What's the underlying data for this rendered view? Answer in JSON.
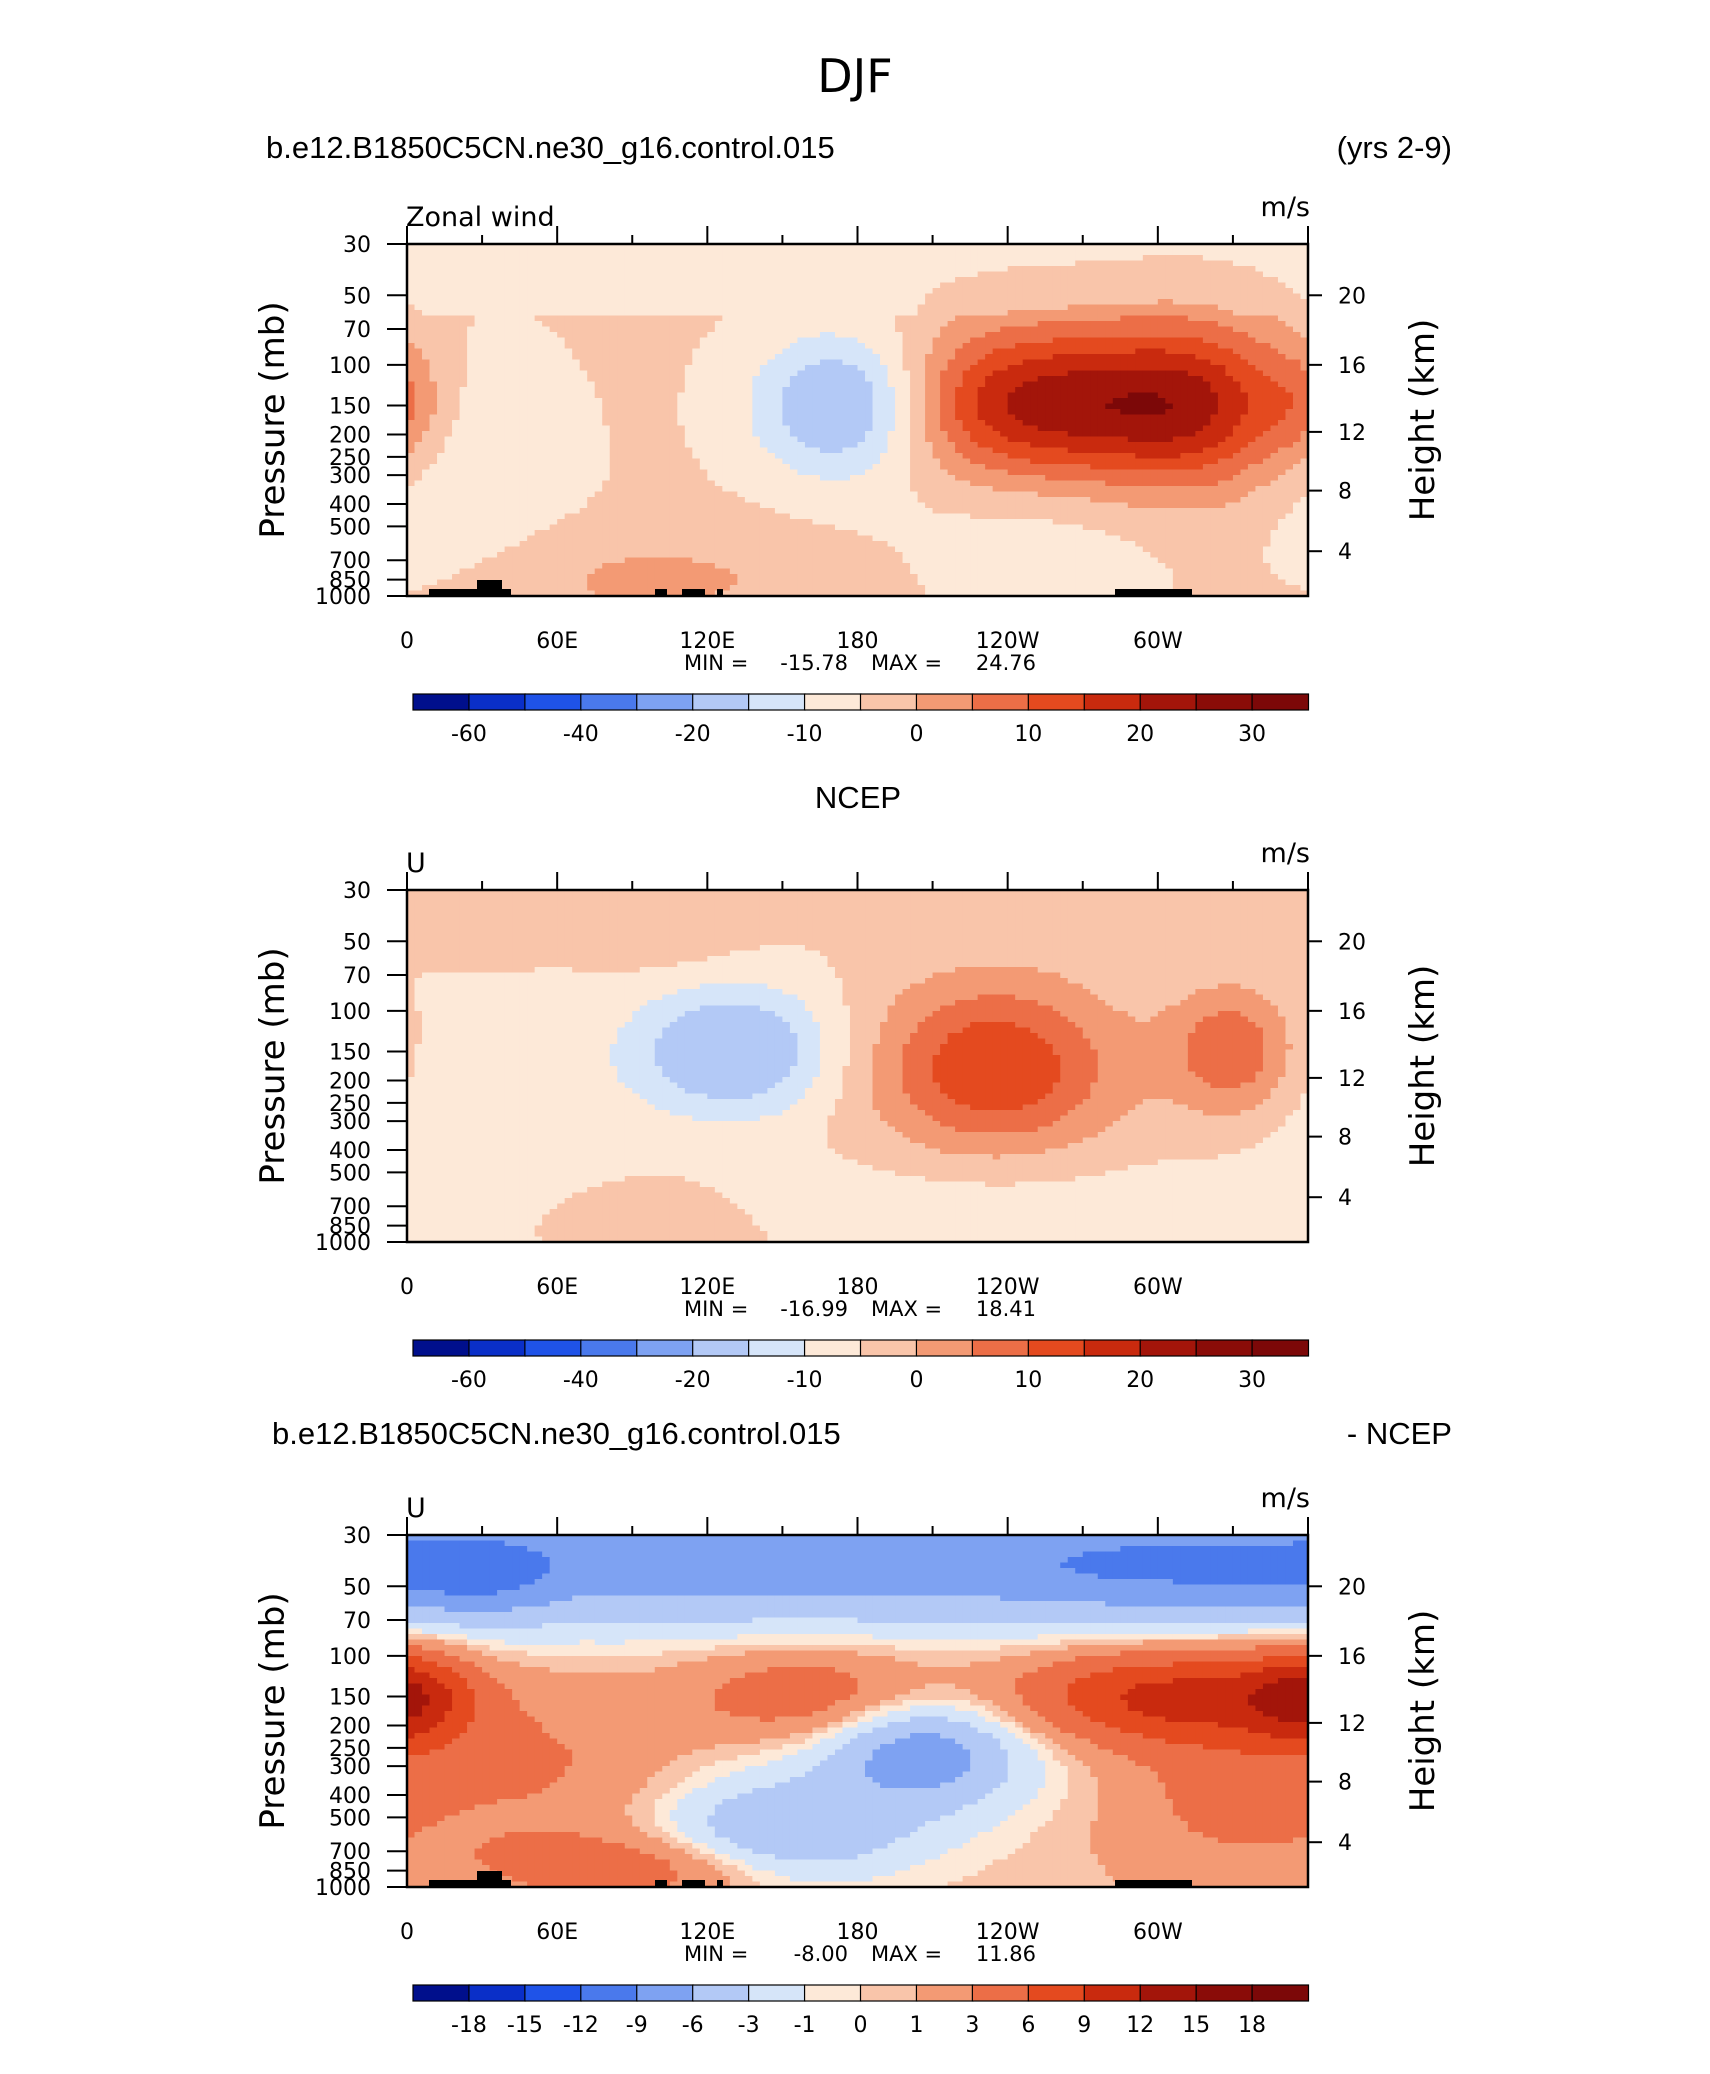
{
  "figure": {
    "title": "DJF"
  },
  "panels": [
    {
      "header_left": "b.e12.B1850C5CN.ne30_g16.control.015",
      "header_right": "(yrs 2-9)",
      "header_center": "",
      "variable_label": "Zonal wind",
      "units": "m/s",
      "min_label": "MIN =",
      "min_value": "-15.78",
      "max_label": "MAX =",
      "max_value": "24.76"
    },
    {
      "header_left": "",
      "header_right": "",
      "header_center": "NCEP",
      "variable_label": "U",
      "units": "m/s",
      "min_label": "MIN =",
      "min_value": "-16.99",
      "max_label": "MAX =",
      "max_value": "18.41"
    },
    {
      "header_left": "b.e12.B1850C5CN.ne30_g16.control.015",
      "header_right": "- NCEP",
      "header_center": "",
      "variable_label": "U",
      "units": "m/s",
      "min_label": "MIN =",
      "min_value": "-8.00",
      "max_label": "MAX =",
      "max_value": "11.86"
    }
  ],
  "axes": {
    "ylabel_left": "Pressure (mb)",
    "ylabel_right": "Height (km)",
    "x_ticks": [
      "0",
      "60E",
      "120E",
      "180",
      "120W",
      "60W"
    ],
    "y_ticks": [
      "30",
      "50",
      "70",
      "100",
      "150",
      "200",
      "250",
      "300",
      "400",
      "500",
      "700",
      "850",
      "1000"
    ],
    "height_ticks": [
      "20",
      "16",
      "12",
      "8",
      "4"
    ]
  },
  "colorbars": {
    "full": [
      "-60",
      "-40",
      "-20",
      "-10",
      "0",
      "10",
      "20",
      "30"
    ],
    "diff": [
      "-18",
      "-15",
      "-12",
      "-9",
      "-6",
      "-3",
      "-1",
      "0",
      "1",
      "3",
      "6",
      "9",
      "12",
      "15",
      "18"
    ]
  },
  "colors": {
    "palette": [
      "#000f8c",
      "#0a2fc8",
      "#1f53e8",
      "#4a79ec",
      "#7ea2f2",
      "#b3c9f6",
      "#d6e5f9",
      "#fde9d8",
      "#f9c5aa",
      "#f39a74",
      "#ec6e47",
      "#e44a1f",
      "#c92a0e",
      "#a3150a",
      "#7c0808"
    ],
    "topography": "#000000"
  },
  "chart_data": [
    {
      "type": "heatmap",
      "title": "DJF",
      "subtitle_left": "b.e12.B1850C5CN.ne30_g16.control.015",
      "subtitle_right": "(yrs 2-9)",
      "variable": "Zonal wind",
      "units": "m/s",
      "xlabel": "",
      "ylabel": "Pressure (mb)",
      "ylabel_right": "Height (km)",
      "x_ticks": [
        "0",
        "60E",
        "120E",
        "180",
        "120W",
        "60W"
      ],
      "y_ticks": [
        30,
        50,
        70,
        100,
        150,
        200,
        250,
        300,
        400,
        500,
        700,
        850,
        1000
      ],
      "y_scale": "log",
      "ylim": [
        1000,
        30
      ],
      "min": -15.78,
      "max": 24.76,
      "contour_levels": [
        -60,
        -40,
        -20,
        -10,
        0,
        10,
        20,
        30
      ],
      "features": [
        {
          "lon": 175,
          "lev": 150,
          "u": -15.8
        },
        {
          "lon": 250,
          "lev": 150,
          "u": 24.8
        },
        {
          "lon": 315,
          "lev": 150,
          "u": 22
        },
        {
          "lon": 0,
          "lev": 150,
          "u": 8
        },
        {
          "lon": 90,
          "lev": 850,
          "u": 5
        }
      ]
    },
    {
      "type": "heatmap",
      "title": "NCEP",
      "variable": "U",
      "units": "m/s",
      "xlabel": "",
      "ylabel": "Pressure (mb)",
      "ylabel_right": "Height (km)",
      "x_ticks": [
        "0",
        "60E",
        "120E",
        "180",
        "120W",
        "60W"
      ],
      "y_ticks": [
        30,
        50,
        70,
        100,
        150,
        200,
        250,
        300,
        400,
        500,
        700,
        850,
        1000
      ],
      "y_scale": "log",
      "ylim": [
        1000,
        30
      ],
      "min": -16.99,
      "max": 18.41,
      "contour_levels": [
        -60,
        -40,
        -20,
        -10,
        0,
        10,
        20,
        30
      ],
      "features": [
        {
          "lon": 130,
          "lev": 150,
          "u": -17.0
        },
        {
          "lon": 235,
          "lev": 170,
          "u": 18.4
        },
        {
          "lon": 330,
          "lev": 150,
          "u": 14
        },
        {
          "lon": 30,
          "lev": 50,
          "u": 4
        },
        {
          "lon": 95,
          "lev": 50,
          "u": 4
        }
      ]
    },
    {
      "type": "heatmap",
      "title": "b.e12.B1850C5CN.ne30_g16.control.015 - NCEP",
      "variable": "U",
      "units": "m/s",
      "xlabel": "",
      "ylabel": "Pressure (mb)",
      "ylabel_right": "Height (km)",
      "x_ticks": [
        "0",
        "60E",
        "120E",
        "180",
        "120W",
        "60W"
      ],
      "y_ticks": [
        30,
        50,
        70,
        100,
        150,
        200,
        250,
        300,
        400,
        500,
        700,
        850,
        1000
      ],
      "y_scale": "log",
      "ylim": [
        1000,
        30
      ],
      "min": -8.0,
      "max": 11.86,
      "contour_levels": [
        -18,
        -15,
        -12,
        -9,
        -6,
        -3,
        -1,
        0,
        1,
        3,
        6,
        9,
        12,
        15,
        18
      ],
      "features": [
        {
          "lon": 30,
          "lev": 45,
          "u": -8.0
        },
        {
          "lon": 300,
          "lev": 150,
          "u": 11.9
        },
        {
          "lon": 0,
          "lev": 150,
          "u": 9
        },
        {
          "lon": 205,
          "lev": 250,
          "u": -6
        },
        {
          "lon": 160,
          "lev": 600,
          "u": -6
        }
      ]
    }
  ]
}
